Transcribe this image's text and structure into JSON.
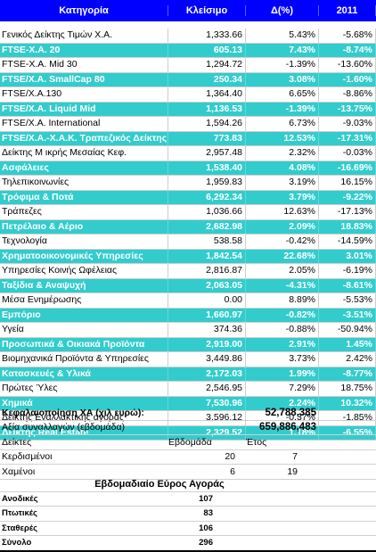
{
  "header": {
    "category": "Κατηγορία",
    "close": "Κλείσιμο",
    "change": "Δ(%)",
    "ytd": "2011"
  },
  "rows": [
    {
      "name": "Γενικός Δείκτης Τιμών Χ.Α.",
      "close": "1,333.66",
      "change": "5.43%",
      "ytd": "-5.68%",
      "hl": false
    },
    {
      "name": "FTSE-X.A. 20",
      "close": "605.13",
      "change": "7.43%",
      "ytd": "-8.74%",
      "hl": true
    },
    {
      "name": "FTSE-X.A. Mid 30",
      "close": "1,294.72",
      "change": "-1.39%",
      "ytd": "-13.60%",
      "hl": false
    },
    {
      "name": "FTSE/X.A. SmallCap 80",
      "close": "250.34",
      "change": "3.08%",
      "ytd": "-1.60%",
      "hl": true
    },
    {
      "name": "FTSE/X.A.130",
      "close": "1,364.40",
      "change": "6.65%",
      "ytd": "-8.86%",
      "hl": false
    },
    {
      "name": "FTSE/X.A. Liquid Mid",
      "close": "1,136.53",
      "change": "-1.39%",
      "ytd": "-13.75%",
      "hl": true
    },
    {
      "name": "FTSE/X.A. International",
      "close": "1,594.26",
      "change": "6.73%",
      "ytd": "-9.03%",
      "hl": false
    },
    {
      "name": "FTSE/X.A.-X.A.K. Τραπεζικός Δείκτης",
      "close": "773.83",
      "change": "12.53%",
      "ytd": "-17.31%",
      "hl": true
    },
    {
      "name": "Δείκτης Μ ικρής Μεσαίας Κεφ.",
      "close": "2,957.48",
      "change": "2.32%",
      "ytd": "-0.03%",
      "hl": false
    },
    {
      "name": "Ασφάλειες",
      "close": "1,538.40",
      "change": "4.08%",
      "ytd": "-16.69%",
      "hl": true
    },
    {
      "name": "Τηλεπικοινωνίες",
      "close": "1,959.83",
      "change": "3.19%",
      "ytd": "16.15%",
      "hl": false
    },
    {
      "name": "Τρόφιμα & Ποτά",
      "close": "6,292.34",
      "change": "3.79%",
      "ytd": "-9.22%",
      "hl": true
    },
    {
      "name": "Τράπεζες",
      "close": "1,036.66",
      "change": "12.63%",
      "ytd": "-17.13%",
      "hl": false
    },
    {
      "name": "Πετρέλαιο & Αέριο",
      "close": "2,682.98",
      "change": "2.09%",
      "ytd": "18.83%",
      "hl": true
    },
    {
      "name": "Τεχνολογία",
      "close": "538.58",
      "change": "-0.42%",
      "ytd": "-14.59%",
      "hl": false
    },
    {
      "name": "Χρηματοοικονομικές Υπηρεσίες",
      "close": "1,842.54",
      "change": "22.68%",
      "ytd": "3.01%",
      "hl": true
    },
    {
      "name": "Υπηρεσίες Κοινής Ωφέλειας",
      "close": "2,816.87",
      "change": "2.05%",
      "ytd": "-6.19%",
      "hl": false
    },
    {
      "name": "Ταξίδια & Αναψυχή",
      "close": "2,063.05",
      "change": "-4.31%",
      "ytd": "-8.61%",
      "hl": true
    },
    {
      "name": "Μέσα Ενημέρωσης",
      "close": "0.00",
      "change": "8.89%",
      "ytd": "-5.53%",
      "hl": false
    },
    {
      "name": "Εμπόριο",
      "close": "1,660.97",
      "change": "-0.82%",
      "ytd": "-3.51%",
      "hl": true
    },
    {
      "name": "Υγεία",
      "close": "374.36",
      "change": "-0.88%",
      "ytd": "-50.94%",
      "hl": false
    },
    {
      "name": "Προσωπικά & Οικιακά Προϊόντα",
      "close": "2,919.00",
      "change": "2.91%",
      "ytd": "1.45%",
      "hl": true
    },
    {
      "name": "Βιομηχανικά Προϊόντα & Υπηρεσίες",
      "close": "3,449.86",
      "change": "3.73%",
      "ytd": "2.42%",
      "hl": false
    },
    {
      "name": "Κατασκευές & Υλικά",
      "close": "2,172.03",
      "change": "1.99%",
      "ytd": "-8.77%",
      "hl": true
    },
    {
      "name": "Πρώτες Ύλες",
      "close": "2,546.95",
      "change": "7.29%",
      "ytd": "18.75%",
      "hl": false
    },
    {
      "name": "Χημικά",
      "close": "7,530.96",
      "change": "2.24%",
      "ytd": "10.32%",
      "hl": true
    },
    {
      "name": "Δείκτης Εναλλακτικής αγοράς",
      "close": "3,596.12",
      "change": "-0.37%",
      "ytd": "-1.85%",
      "hl": false
    },
    {
      "name": "Δείκτης Real Estate",
      "close": "2,329.52",
      "change": "1.18%",
      "ytd": "-6.55%",
      "hl": true
    }
  ],
  "summary": {
    "cap_label": "Κεφαλαιοποίηση ΧΑ (χιλ ευρώ):",
    "cap_value": "52,788,385",
    "volume_label": "Αξία συναλλαγών (εβδομάδα)",
    "volume_value": "659,886,483",
    "indices_label": "Δείκτες",
    "week_label": "Εβδομάδα",
    "year_label": "Έτος",
    "gainers_label": "Κερδισμένοι",
    "gainers_week": "20",
    "gainers_year": "7",
    "losers_label": "Χαμένοι",
    "losers_week": "6",
    "losers_year": "19"
  },
  "breadth": {
    "title": "Εβδομαδιαίο Εύρος Αγοράς",
    "up_label": "Ανοδικές",
    "up_value": "107",
    "down_label": "Πτωτικές",
    "down_value": "83",
    "flat_label": "Σταθερές",
    "flat_value": "106",
    "total_label": "Σύνολο",
    "total_value": "296"
  }
}
